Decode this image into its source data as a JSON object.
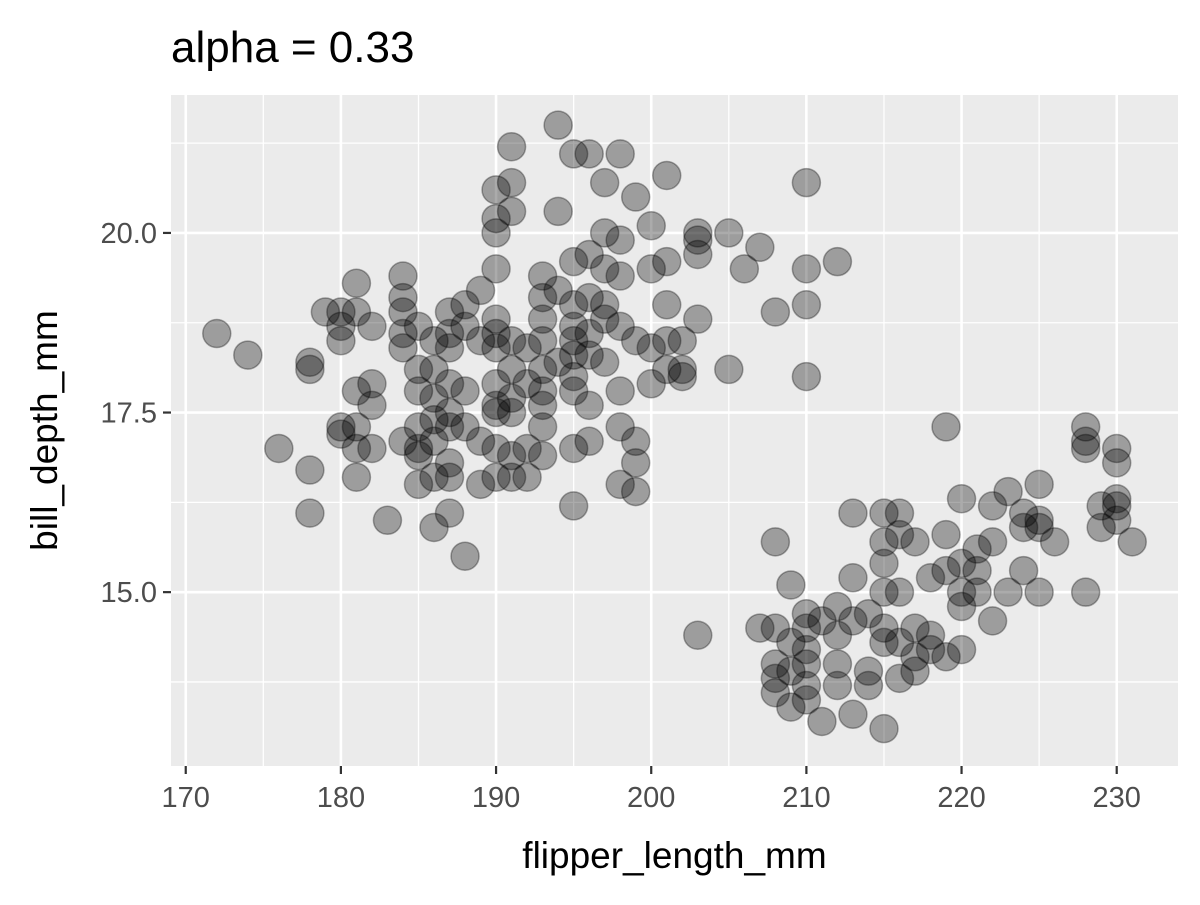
{
  "chart_data": {
    "type": "scatter",
    "title": "alpha = 0.33",
    "xlabel": "flipper_length_mm",
    "ylabel": "bill_depth_mm",
    "xlim": [
      169.05,
      233.95
    ],
    "ylim": [
      12.58,
      21.92
    ],
    "x_ticks": [
      170,
      180,
      190,
      200,
      210,
      220,
      230
    ],
    "x_tick_labels": [
      "170",
      "180",
      "190",
      "200",
      "210",
      "220",
      "230"
    ],
    "y_ticks": [
      15.0,
      17.5,
      20.0
    ],
    "y_tick_labels": [
      "15.0",
      "17.5",
      "20.0"
    ],
    "grid": true,
    "point_color": "#000000",
    "point_alpha": 0.33,
    "panel_background": "#ebebeb",
    "points": [
      [
        172,
        18.6
      ],
      [
        174,
        18.3
      ],
      [
        176,
        17.0
      ],
      [
        178,
        18.2
      ],
      [
        178,
        18.1
      ],
      [
        178,
        16.7
      ],
      [
        178,
        16.1
      ],
      [
        179,
        18.9
      ],
      [
        180,
        18.9
      ],
      [
        180,
        18.7
      ],
      [
        180,
        18.5
      ],
      [
        180,
        17.3
      ],
      [
        180,
        17.2
      ],
      [
        181,
        19.3
      ],
      [
        181,
        18.9
      ],
      [
        181,
        17.8
      ],
      [
        181,
        17.3
      ],
      [
        181,
        17.0
      ],
      [
        181,
        16.6
      ],
      [
        182,
        18.7
      ],
      [
        182,
        17.9
      ],
      [
        182,
        17.6
      ],
      [
        182,
        17.0
      ],
      [
        183,
        16.0
      ],
      [
        184,
        19.4
      ],
      [
        184,
        19.1
      ],
      [
        184,
        18.9
      ],
      [
        184,
        18.6
      ],
      [
        184,
        18.4
      ],
      [
        184,
        17.1
      ],
      [
        185,
        18.7
      ],
      [
        185,
        18.1
      ],
      [
        185,
        17.8
      ],
      [
        185,
        17.3
      ],
      [
        185,
        17.0
      ],
      [
        185,
        16.9
      ],
      [
        185,
        16.5
      ],
      [
        186,
        18.5
      ],
      [
        186,
        18.1
      ],
      [
        186,
        17.7
      ],
      [
        186,
        17.4
      ],
      [
        186,
        17.1
      ],
      [
        186,
        16.6
      ],
      [
        186,
        15.9
      ],
      [
        187,
        18.9
      ],
      [
        187,
        18.6
      ],
      [
        187,
        18.4
      ],
      [
        187,
        17.9
      ],
      [
        187,
        17.5
      ],
      [
        187,
        17.3
      ],
      [
        187,
        16.8
      ],
      [
        187,
        16.6
      ],
      [
        187,
        16.1
      ],
      [
        188,
        19.0
      ],
      [
        188,
        18.7
      ],
      [
        188,
        17.8
      ],
      [
        188,
        17.3
      ],
      [
        188,
        15.5
      ],
      [
        189,
        19.2
      ],
      [
        189,
        18.5
      ],
      [
        189,
        17.1
      ],
      [
        189,
        16.5
      ],
      [
        190,
        20.6
      ],
      [
        190,
        20.2
      ],
      [
        190,
        20.0
      ],
      [
        190,
        19.5
      ],
      [
        190,
        18.8
      ],
      [
        190,
        18.6
      ],
      [
        190,
        18.4
      ],
      [
        190,
        17.9
      ],
      [
        190,
        17.6
      ],
      [
        190,
        17.5
      ],
      [
        190,
        17.0
      ],
      [
        190,
        16.6
      ],
      [
        191,
        21.2
      ],
      [
        191,
        20.7
      ],
      [
        191,
        20.3
      ],
      [
        191,
        18.5
      ],
      [
        191,
        18.1
      ],
      [
        191,
        17.7
      ],
      [
        191,
        17.5
      ],
      [
        191,
        16.9
      ],
      [
        191,
        16.6
      ],
      [
        192,
        18.4
      ],
      [
        192,
        17.9
      ],
      [
        192,
        17.0
      ],
      [
        192,
        16.6
      ],
      [
        193,
        19.4
      ],
      [
        193,
        19.1
      ],
      [
        193,
        18.8
      ],
      [
        193,
        18.5
      ],
      [
        193,
        18.1
      ],
      [
        193,
        17.8
      ],
      [
        193,
        17.6
      ],
      [
        193,
        17.3
      ],
      [
        193,
        16.9
      ],
      [
        194,
        21.5
      ],
      [
        194,
        20.3
      ],
      [
        194,
        19.2
      ],
      [
        194,
        18.2
      ],
      [
        195,
        21.1
      ],
      [
        195,
        19.6
      ],
      [
        195,
        19.0
      ],
      [
        195,
        18.7
      ],
      [
        195,
        18.5
      ],
      [
        195,
        18.3
      ],
      [
        195,
        18.0
      ],
      [
        195,
        17.8
      ],
      [
        195,
        17.0
      ],
      [
        195,
        16.2
      ],
      [
        196,
        21.1
      ],
      [
        196,
        19.7
      ],
      [
        196,
        19.1
      ],
      [
        196,
        18.6
      ],
      [
        196,
        18.3
      ],
      [
        196,
        17.6
      ],
      [
        196,
        17.1
      ],
      [
        197,
        20.7
      ],
      [
        197,
        20.0
      ],
      [
        197,
        19.5
      ],
      [
        197,
        19.0
      ],
      [
        197,
        18.8
      ],
      [
        197,
        18.2
      ],
      [
        198,
        21.1
      ],
      [
        198,
        19.9
      ],
      [
        198,
        19.4
      ],
      [
        198,
        18.7
      ],
      [
        198,
        17.8
      ],
      [
        198,
        17.3
      ],
      [
        198,
        16.5
      ],
      [
        199,
        20.5
      ],
      [
        199,
        18.5
      ],
      [
        199,
        17.1
      ],
      [
        199,
        16.8
      ],
      [
        199,
        16.4
      ],
      [
        200,
        20.1
      ],
      [
        200,
        19.5
      ],
      [
        200,
        18.4
      ],
      [
        200,
        17.9
      ],
      [
        201,
        20.8
      ],
      [
        201,
        19.6
      ],
      [
        201,
        19.0
      ],
      [
        201,
        18.5
      ],
      [
        201,
        18.1
      ],
      [
        202,
        18.5
      ],
      [
        202,
        18.1
      ],
      [
        202,
        18.0
      ],
      [
        203,
        20.0
      ],
      [
        203,
        19.9
      ],
      [
        203,
        19.7
      ],
      [
        203,
        18.8
      ],
      [
        203,
        14.4
      ],
      [
        205,
        20.0
      ],
      [
        205,
        18.1
      ],
      [
        206,
        19.5
      ],
      [
        207,
        19.8
      ],
      [
        208,
        18.9
      ],
      [
        207,
        14.5
      ],
      [
        208,
        15.7
      ],
      [
        208,
        14.5
      ],
      [
        208,
        14.0
      ],
      [
        208,
        13.8
      ],
      [
        208,
        13.6
      ],
      [
        209,
        15.1
      ],
      [
        209,
        14.3
      ],
      [
        209,
        13.9
      ],
      [
        209,
        13.4
      ],
      [
        210,
        20.7
      ],
      [
        210,
        19.5
      ],
      [
        210,
        19.0
      ],
      [
        210,
        18.0
      ],
      [
        210,
        14.7
      ],
      [
        210,
        14.5
      ],
      [
        210,
        14.2
      ],
      [
        210,
        14.0
      ],
      [
        210,
        13.7
      ],
      [
        210,
        13.5
      ],
      [
        211,
        14.6
      ],
      [
        211,
        13.2
      ],
      [
        212,
        14.8
      ],
      [
        212,
        14.4
      ],
      [
        212,
        14.0
      ],
      [
        212,
        13.7
      ],
      [
        212,
        19.6
      ],
      [
        213,
        16.1
      ],
      [
        213,
        15.2
      ],
      [
        213,
        14.6
      ],
      [
        213,
        13.3
      ],
      [
        214,
        14.7
      ],
      [
        214,
        13.9
      ],
      [
        214,
        13.7
      ],
      [
        215,
        16.1
      ],
      [
        215,
        15.7
      ],
      [
        215,
        15.4
      ],
      [
        215,
        15.0
      ],
      [
        215,
        14.5
      ],
      [
        215,
        14.3
      ],
      [
        215,
        13.1
      ],
      [
        216,
        16.1
      ],
      [
        216,
        15.8
      ],
      [
        216,
        15.0
      ],
      [
        216,
        14.3
      ],
      [
        216,
        13.8
      ],
      [
        217,
        15.7
      ],
      [
        217,
        14.5
      ],
      [
        217,
        14.1
      ],
      [
        217,
        13.9
      ],
      [
        218,
        15.2
      ],
      [
        218,
        14.4
      ],
      [
        218,
        14.2
      ],
      [
        219,
        17.3
      ],
      [
        219,
        15.8
      ],
      [
        219,
        15.3
      ],
      [
        219,
        14.1
      ],
      [
        220,
        16.3
      ],
      [
        220,
        15.4
      ],
      [
        220,
        15.0
      ],
      [
        220,
        14.8
      ],
      [
        220,
        14.2
      ],
      [
        221,
        15.6
      ],
      [
        221,
        15.3
      ],
      [
        221,
        15.0
      ],
      [
        222,
        16.2
      ],
      [
        222,
        15.7
      ],
      [
        222,
        14.6
      ],
      [
        223,
        16.4
      ],
      [
        223,
        15.0
      ],
      [
        224,
        16.1
      ],
      [
        224,
        15.9
      ],
      [
        224,
        15.3
      ],
      [
        225,
        16.5
      ],
      [
        225,
        16.0
      ],
      [
        225,
        15.9
      ],
      [
        225,
        15.0
      ],
      [
        226,
        15.7
      ],
      [
        228,
        17.3
      ],
      [
        228,
        17.1
      ],
      [
        228,
        17.0
      ],
      [
        228,
        15.0
      ],
      [
        229,
        16.2
      ],
      [
        229,
        15.9
      ],
      [
        230,
        17.0
      ],
      [
        230,
        16.8
      ],
      [
        230,
        16.3
      ],
      [
        230,
        16.0
      ],
      [
        230,
        16.2
      ],
      [
        231,
        15.7
      ]
    ]
  }
}
